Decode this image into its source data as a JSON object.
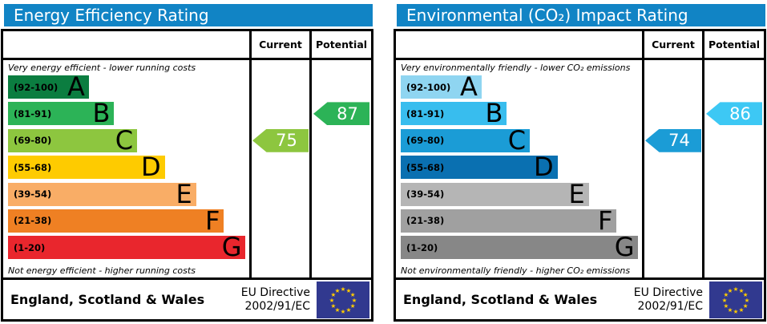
{
  "chart_data": [
    {
      "type": "bar",
      "title": "Energy Efficiency Rating",
      "categories": [
        "A",
        "B",
        "C",
        "D",
        "E",
        "F",
        "G"
      ],
      "band_ranges": [
        "92-100",
        "81-91",
        "69-80",
        "55-68",
        "39-54",
        "21-38",
        "1-20"
      ],
      "band_colors": [
        "#0b7d40",
        "#2cb357",
        "#8dc63f",
        "#fecb00",
        "#f9ad66",
        "#ef8023",
        "#e9262d"
      ],
      "current": 75,
      "current_band": "C",
      "potential": 87,
      "potential_band": "B",
      "scale": [
        1,
        100
      ]
    },
    {
      "type": "bar",
      "title": "Environmental (CO₂) Impact Rating",
      "categories": [
        "A",
        "B",
        "C",
        "D",
        "E",
        "F",
        "G"
      ],
      "band_ranges": [
        "92-100",
        "81-91",
        "69-80",
        "55-68",
        "39-54",
        "21-38",
        "1-20"
      ],
      "band_colors": [
        "#8fd5f1",
        "#38bdee",
        "#1b9cd6",
        "#0a70b1",
        "#b5b5b5",
        "#a0a0a0",
        "#878787"
      ],
      "current": 74,
      "current_band": "C",
      "potential": 86,
      "potential_band": "B",
      "scale": [
        1,
        100
      ]
    }
  ],
  "eu_flag": {
    "background": "#31398f",
    "stars": "#ffcc00"
  },
  "charts": [
    {
      "title": "Energy Efficiency Rating",
      "title_bg": "#1184c5",
      "columns": {
        "current": "Current",
        "potential": "Potential"
      },
      "top_caption": "Very energy efficient - lower running costs",
      "bottom_caption": "Not energy efficient - higher running costs",
      "bands": [
        {
          "range": "(92-100)",
          "letter": "A",
          "color": "#0b7d40",
          "width_pct": 33.5
        },
        {
          "range": "(81-91)",
          "letter": "B",
          "color": "#2cb357",
          "width_pct": 44
        },
        {
          "range": "(69-80)",
          "letter": "C",
          "color": "#8dc63f",
          "width_pct": 53.5
        },
        {
          "range": "(55-68)",
          "letter": "D",
          "color": "#fecb00",
          "width_pct": 65
        },
        {
          "range": "(39-54)",
          "letter": "E",
          "color": "#f9ad66",
          "width_pct": 78
        },
        {
          "range": "(21-38)",
          "letter": "F",
          "color": "#ef8023",
          "width_pct": 89.5
        },
        {
          "range": "(1-20)",
          "letter": "G",
          "color": "#e9262d",
          "width_pct": 98.5
        }
      ],
      "current": {
        "value": "75",
        "band_index": 2,
        "color": "#8dc63f"
      },
      "potential": {
        "value": "87",
        "band_index": 1,
        "color": "#2cb357"
      },
      "footer": {
        "region": "England, Scotland & Wales",
        "directive_line1": "EU Directive",
        "directive_line2": "2002/91/EC"
      }
    },
    {
      "title": "Environmental (CO₂) Impact Rating",
      "title_bg": "#1184c5",
      "columns": {
        "current": "Current",
        "potential": "Potential"
      },
      "top_caption": "Very environmentally friendly - lower CO₂ emissions",
      "bottom_caption": "Not environmentally friendly - higher CO₂ emissions",
      "bands": [
        {
          "range": "(92-100)",
          "letter": "A",
          "color": "#8fd5f1",
          "width_pct": 33.5
        },
        {
          "range": "(81-91)",
          "letter": "B",
          "color": "#38bdee",
          "width_pct": 44
        },
        {
          "range": "(69-80)",
          "letter": "C",
          "color": "#1b9cd6",
          "width_pct": 53.5
        },
        {
          "range": "(55-68)",
          "letter": "D",
          "color": "#0a70b1",
          "width_pct": 65
        },
        {
          "range": "(39-54)",
          "letter": "E",
          "color": "#b5b5b5",
          "width_pct": 78
        },
        {
          "range": "(21-38)",
          "letter": "F",
          "color": "#a0a0a0",
          "width_pct": 89.5
        },
        {
          "range": "(1-20)",
          "letter": "G",
          "color": "#878787",
          "width_pct": 98.5
        }
      ],
      "current": {
        "value": "74",
        "band_index": 2,
        "color": "#1b9cd6"
      },
      "potential": {
        "value": "86",
        "band_index": 1,
        "color": "#3dc8f4"
      },
      "footer": {
        "region": "England, Scotland & Wales",
        "directive_line1": "EU Directive",
        "directive_line2": "2002/91/EC"
      }
    }
  ]
}
